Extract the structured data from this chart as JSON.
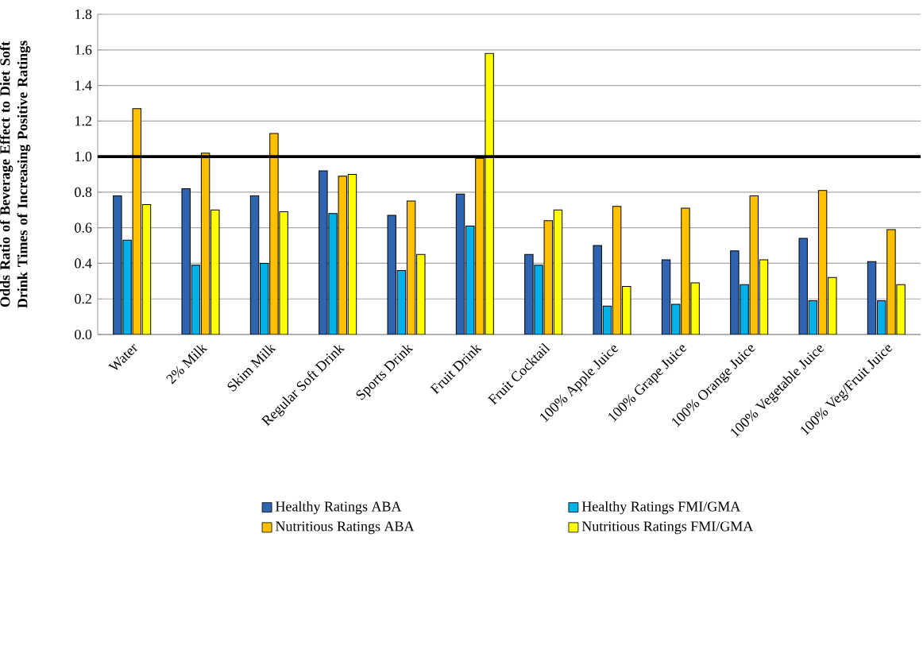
{
  "chart_data": {
    "type": "bar",
    "ylabel": "Odds Ratio of Beverage Effect to Diet Soft Drink Times of Increasing Positive Ratings",
    "categories": [
      "Water",
      "2% Milk",
      "Skim Milk",
      "Regular Soft Drink",
      "Sports Drink",
      "Fruit Drink",
      "Fruit Cocktail",
      "100% Apple Juice",
      "100% Grape Juice",
      "100% Orange Juice",
      "100% Vegetable Juice",
      "100% Veg/Fruit Juice"
    ],
    "series": [
      {
        "name": "Healthy Ratings ABA",
        "color": "#2e64b0",
        "values": [
          0.78,
          0.82,
          0.78,
          0.92,
          0.67,
          0.79,
          0.45,
          0.5,
          0.42,
          0.47,
          0.54,
          0.41
        ]
      },
      {
        "name": "Healthy Ratings FMI/GMA",
        "color": "#00b0e8",
        "values": [
          0.53,
          0.39,
          0.4,
          0.68,
          0.36,
          0.61,
          0.39,
          0.16,
          0.17,
          0.28,
          0.19,
          0.19
        ]
      },
      {
        "name": "Nutritious Ratings ABA",
        "color": "#ffc000",
        "values": [
          1.27,
          1.02,
          1.13,
          0.89,
          0.75,
          0.99,
          0.64,
          0.72,
          0.71,
          0.78,
          0.81,
          0.59
        ]
      },
      {
        "name": "Nutritious Ratings FMI/GMA",
        "color": "#ffff00",
        "values": [
          0.73,
          0.7,
          0.69,
          0.9,
          0.45,
          1.58,
          0.7,
          0.27,
          0.29,
          0.42,
          0.32,
          0.28
        ]
      }
    ],
    "ylim": [
      0,
      1.8
    ],
    "yticks": [
      {
        "value": 0,
        "label": "0.0"
      },
      {
        "value": 0.2,
        "label": "0.2"
      },
      {
        "value": 0.4,
        "label": "0.4"
      },
      {
        "value": 0.6,
        "label": "0.6"
      },
      {
        "value": 0.8,
        "label": "0.8"
      },
      {
        "value": 1.0,
        "label": "1.0"
      },
      {
        "value": 1.2,
        "label": "1.2"
      },
      {
        "value": 1.4,
        "label": "1.4"
      },
      {
        "value": 1.6,
        "label": "1.6"
      },
      {
        "value": 1.8,
        "label": "1.8"
      }
    ],
    "ref_lines": [
      {
        "axis": "y",
        "value": 1.0,
        "color": "#000000"
      }
    ],
    "grid": "y",
    "legend": "bottom"
  }
}
